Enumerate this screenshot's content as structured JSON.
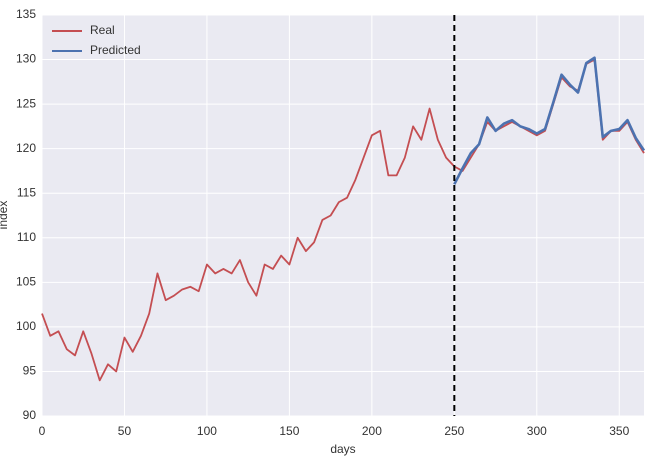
{
  "chart_data": {
    "type": "line",
    "xlabel": "days",
    "ylabel": "index",
    "x": [
      0,
      5,
      10,
      15,
      20,
      25,
      30,
      35,
      40,
      45,
      50,
      55,
      60,
      65,
      70,
      75,
      80,
      85,
      90,
      95,
      100,
      105,
      110,
      115,
      120,
      125,
      130,
      135,
      140,
      145,
      150,
      155,
      160,
      165,
      170,
      175,
      180,
      185,
      190,
      195,
      200,
      205,
      210,
      215,
      220,
      225,
      230,
      235,
      240,
      245,
      250,
      255,
      260,
      265,
      270,
      275,
      280,
      285,
      290,
      295,
      300,
      305,
      310,
      315,
      320,
      325,
      330,
      335,
      340,
      345,
      350,
      355,
      360,
      365
    ],
    "series": [
      {
        "name": "Real",
        "color": "#c44e52",
        "values": [
          101.5,
          99,
          99.5,
          97.5,
          96.8,
          99.5,
          97,
          94,
          95.8,
          95,
          98.8,
          97.2,
          99,
          101.5,
          106,
          103,
          103.5,
          104.2,
          104.5,
          104,
          107,
          106,
          106.5,
          106,
          107.5,
          105,
          103.5,
          107,
          106.5,
          108,
          107,
          110,
          108.5,
          109.5,
          112,
          112.5,
          114,
          114.5,
          116.5,
          119,
          121.5,
          122,
          117,
          117,
          119,
          122.5,
          121,
          124.5,
          121,
          119,
          118,
          117.5,
          119,
          120.5,
          123,
          122,
          122.5,
          123,
          122.5,
          122,
          121.5,
          122,
          125,
          128,
          127,
          126.5,
          129.5,
          130,
          121,
          122,
          122,
          123,
          121,
          119.5
        ]
      },
      {
        "name": "Predicted",
        "color": "#4c72b0",
        "values": [
          null,
          null,
          null,
          null,
          null,
          null,
          null,
          null,
          null,
          null,
          null,
          null,
          null,
          null,
          null,
          null,
          null,
          null,
          null,
          null,
          null,
          null,
          null,
          null,
          null,
          null,
          null,
          null,
          null,
          null,
          null,
          null,
          null,
          null,
          null,
          null,
          null,
          null,
          null,
          null,
          null,
          null,
          null,
          null,
          null,
          null,
          null,
          null,
          null,
          null,
          116,
          117.8,
          119.5,
          120.5,
          123.5,
          122,
          122.8,
          123.2,
          122.5,
          122.2,
          121.7,
          122.2,
          125.2,
          128.3,
          127.2,
          126.3,
          129.6,
          130.2,
          121.3,
          122,
          122.2,
          123.2,
          121.2,
          119.8
        ]
      }
    ],
    "xlim": [
      0,
      365
    ],
    "ylim": [
      90,
      135
    ],
    "xticks": [
      0,
      50,
      100,
      150,
      200,
      250,
      300,
      350
    ],
    "yticks": [
      90,
      95,
      100,
      105,
      110,
      115,
      120,
      125,
      130,
      135
    ],
    "vline": 250,
    "grid": true,
    "legend": "upper left"
  }
}
